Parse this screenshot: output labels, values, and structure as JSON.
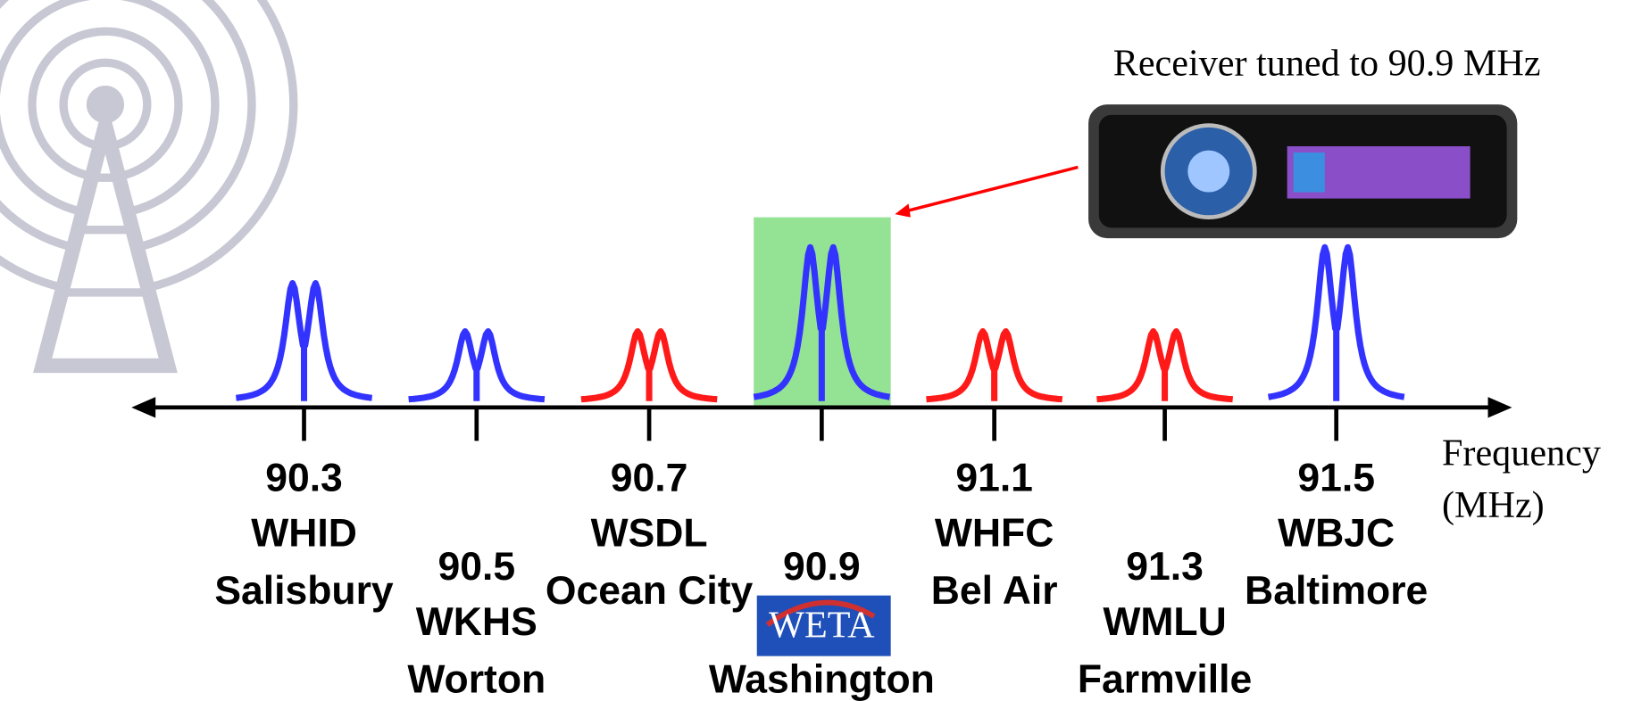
{
  "receiver_label": "Receiver tuned to 90.9 MHz",
  "axis_label": [
    "Frequency",
    "(MHz)"
  ],
  "logo_text": "WETA",
  "highlight_color": "#94e394",
  "stations": [
    {
      "frequency": "90.3",
      "call": "WHID",
      "city": "Salisbury",
      "color": "#3333ff"
    },
    {
      "frequency": "90.5",
      "call": "WKHS",
      "city": "Worton",
      "color": "#3333ff"
    },
    {
      "frequency": "90.7",
      "call": "WSDL",
      "city": "Ocean City",
      "color": "#ff1a1a"
    },
    {
      "frequency": "90.9",
      "call": null,
      "city": "Washington",
      "color": "#3333ff",
      "tuned": true
    },
    {
      "frequency": "91.1",
      "call": "WHFC",
      "city": "Bel Air",
      "color": "#ff1a1a"
    },
    {
      "frequency": "91.3",
      "call": "WMLU",
      "city": "Farmville",
      "color": "#ff1a1a"
    },
    {
      "frequency": "91.5",
      "call": "WBJC",
      "city": "Baltimore",
      "color": "#3333ff"
    }
  ]
}
